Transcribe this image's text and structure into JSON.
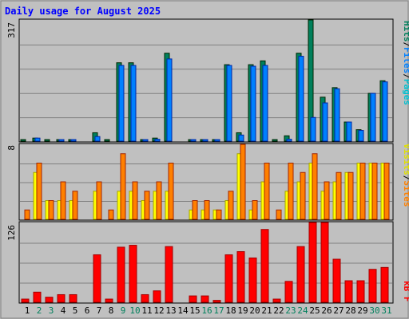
{
  "chart_data": [
    {
      "type": "bar",
      "title": "Daily usage for August 2025",
      "y_max_label": "317",
      "ylim": [
        0,
        317
      ],
      "legend": [
        "Pages",
        "/",
        "Files",
        "/",
        "Hits"
      ],
      "categories": [
        "1",
        "2",
        "3",
        "4",
        "5",
        "6",
        "7",
        "8",
        "9",
        "10",
        "11",
        "12",
        "13",
        "14",
        "15",
        "16",
        "17",
        "18",
        "19",
        "20",
        "21",
        "22",
        "23",
        "24",
        "25",
        "26",
        "27",
        "28",
        "29",
        "30",
        "31"
      ],
      "series": [
        {
          "name": "Hits",
          "values": [
            3,
            8,
            3,
            4,
            4,
            0,
            22,
            3,
            205,
            205,
            4,
            8,
            230,
            0,
            4,
            3,
            3,
            200,
            22,
            200,
            210,
            3,
            14,
            230,
            317,
            115,
            140,
            50,
            30,
            125,
            158
          ]
        },
        {
          "name": "Files",
          "values": [
            0,
            8,
            0,
            3,
            3,
            0,
            12,
            0,
            198,
            198,
            3,
            5,
            215,
            0,
            3,
            3,
            3,
            198,
            16,
            196,
            198,
            0,
            5,
            222,
            62,
            100,
            137,
            50,
            28,
            125,
            155
          ]
        },
        {
          "name": "Pages",
          "values": [
            0,
            0,
            0,
            0,
            0,
            0,
            0,
            0,
            0,
            0,
            0,
            0,
            0,
            0,
            0,
            0,
            0,
            0,
            0,
            0,
            0,
            0,
            0,
            0,
            0,
            0,
            0,
            0,
            0,
            0,
            0
          ]
        }
      ],
      "colors": {
        "Hits": "#00805c",
        "Files": "#0080ff",
        "Pages": "#00c0d0"
      }
    },
    {
      "type": "bar",
      "y_max_label": "8",
      "ylim": [
        0,
        8
      ],
      "legend": [
        "Sites",
        "/",
        "Visits"
      ],
      "categories": [
        "1",
        "2",
        "3",
        "4",
        "5",
        "6",
        "7",
        "8",
        "9",
        "10",
        "11",
        "12",
        "13",
        "14",
        "15",
        "16",
        "17",
        "18",
        "19",
        "20",
        "21",
        "22",
        "23",
        "24",
        "25",
        "26",
        "27",
        "28",
        "29",
        "30",
        "31"
      ],
      "series": [
        {
          "name": "Visits",
          "values": [
            0,
            5,
            2,
            2,
            2,
            0,
            3,
            0,
            3,
            3,
            2,
            3,
            3,
            0,
            1,
            1,
            1,
            2,
            7,
            1,
            4,
            0,
            3,
            4,
            6,
            3,
            4,
            5,
            6,
            6,
            6
          ]
        },
        {
          "name": "Sites",
          "values": [
            1,
            6,
            2,
            4,
            3,
            0,
            4,
            1,
            7,
            4,
            3,
            4,
            6,
            0,
            2,
            2,
            1,
            3,
            8,
            2,
            6,
            1,
            6,
            5,
            7,
            4,
            5,
            5,
            6,
            6,
            6
          ]
        }
      ],
      "colors": {
        "Visits": "#ffff00",
        "Sites": "#ff8000"
      }
    },
    {
      "type": "bar",
      "y_max_label": "126",
      "ylim": [
        0,
        126
      ],
      "legend": [
        "kB F"
      ],
      "categories": [
        "1",
        "2",
        "3",
        "4",
        "5",
        "6",
        "7",
        "8",
        "9",
        "10",
        "11",
        "12",
        "13",
        "14",
        "15",
        "16",
        "17",
        "18",
        "19",
        "20",
        "21",
        "22",
        "23",
        "24",
        "25",
        "26",
        "27",
        "28",
        "29",
        "30",
        "31"
      ],
      "series": [
        {
          "name": "kB F",
          "values": [
            5,
            16,
            8,
            12,
            12,
            0,
            75,
            5,
            87,
            90,
            12,
            18,
            88,
            0,
            10,
            10,
            3,
            75,
            80,
            70,
            115,
            5,
            33,
            88,
            126,
            126,
            68,
            34,
            34,
            52,
            55
          ]
        }
      ],
      "colors": {
        "kB F": "#ff0000"
      }
    }
  ],
  "weekend_days": [
    "2",
    "3",
    "9",
    "10",
    "16",
    "17",
    "23",
    "24",
    "30",
    "31"
  ],
  "colors": {
    "background": "#c0c0c0",
    "plot_background": "#c0c0c0",
    "grid": "#808080",
    "title": "#0000ff",
    "axis_label": "#000000",
    "weekday_label": "#000000",
    "weekend_label": "#00805c"
  }
}
